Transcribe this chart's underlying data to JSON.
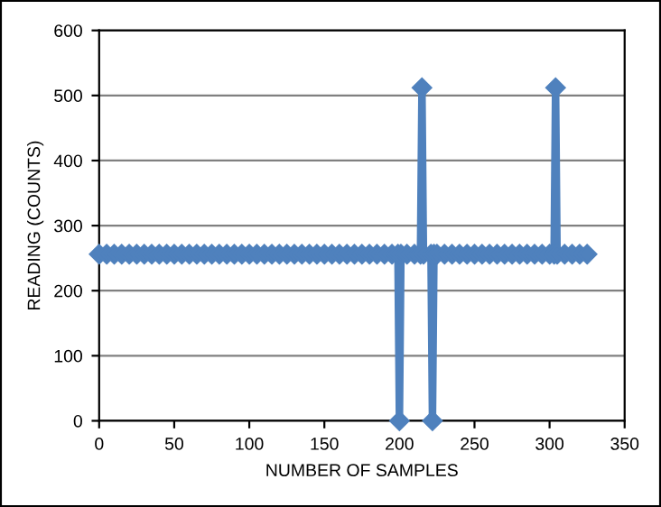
{
  "chart_data": {
    "type": "line",
    "xlabel": "NUMBER OF SAMPLES",
    "ylabel": "READING (COUNTS)",
    "xlim": [
      0,
      350
    ],
    "xticks": [
      0,
      50,
      100,
      150,
      200,
      250,
      300,
      350
    ],
    "ylim": [
      0,
      600
    ],
    "yticks": [
      0,
      100,
      200,
      300,
      400,
      500,
      600
    ],
    "grid": "y",
    "marker": "diamond",
    "line_style": "solid",
    "series": [
      {
        "color": "#4f81bd",
        "x": [
          0,
          5,
          10,
          15,
          20,
          25,
          30,
          35,
          40,
          45,
          50,
          55,
          60,
          65,
          70,
          75,
          80,
          85,
          90,
          95,
          100,
          105,
          110,
          115,
          120,
          125,
          130,
          135,
          140,
          145,
          150,
          155,
          160,
          165,
          170,
          175,
          180,
          185,
          190,
          195,
          199,
          200,
          201,
          205,
          210,
          214,
          215,
          216,
          221,
          222,
          223,
          225,
          230,
          235,
          240,
          245,
          250,
          255,
          260,
          265,
          270,
          275,
          280,
          285,
          290,
          295,
          300,
          303,
          304,
          305,
          310,
          315,
          320,
          325
        ],
        "values": [
          256,
          256,
          256,
          256,
          256,
          256,
          256,
          256,
          256,
          256,
          256,
          256,
          256,
          256,
          256,
          256,
          256,
          256,
          256,
          256,
          256,
          256,
          256,
          256,
          256,
          256,
          256,
          256,
          256,
          256,
          256,
          256,
          256,
          256,
          256,
          256,
          256,
          256,
          256,
          256,
          256,
          0,
          256,
          256,
          256,
          256,
          512,
          256,
          256,
          0,
          256,
          256,
          256,
          256,
          256,
          256,
          256,
          256,
          256,
          256,
          256,
          256,
          256,
          256,
          256,
          256,
          256,
          256,
          512,
          256,
          256,
          256,
          256,
          256
        ]
      }
    ]
  }
}
